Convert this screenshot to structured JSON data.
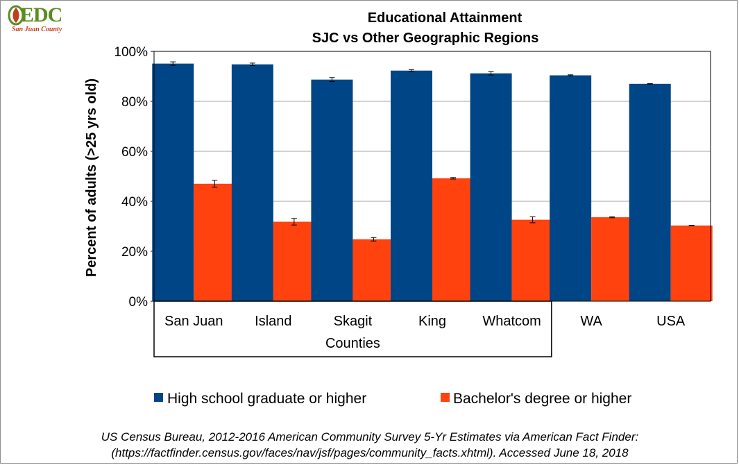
{
  "logo": {
    "text": "EDC",
    "subtext": "San Juan County"
  },
  "chart_data": {
    "type": "bar",
    "title_lines": [
      "Educational Attainment",
      "SJC vs Other Geographic Regions"
    ],
    "ylabel": "Percent of adults (>25 yrs old)",
    "ylim": [
      0,
      100
    ],
    "yticks": [
      "0%",
      "20%",
      "40%",
      "60%",
      "80%",
      "100%"
    ],
    "ytick_values": [
      0,
      20,
      40,
      60,
      80,
      100
    ],
    "grid": true,
    "categories": [
      "San Juan",
      "Island",
      "Skagit",
      "King",
      "Whatcom",
      "WA",
      "USA"
    ],
    "group_label": "Counties",
    "series": [
      {
        "name": "High school graduate or higher",
        "color": "#004586",
        "values": [
          95.1,
          94.8,
          88.7,
          92.3,
          91.2,
          90.4,
          87.0
        ],
        "errors": [
          0.7,
          0.5,
          0.8,
          0.4,
          0.7,
          0.2,
          0.1
        ]
      },
      {
        "name": "Bachelor's degree or higher",
        "color": "#ff420e",
        "values": [
          47.0,
          31.8,
          24.8,
          49.2,
          32.6,
          33.6,
          30.3
        ],
        "errors": [
          1.4,
          1.3,
          0.7,
          0.3,
          1.2,
          0.2,
          0.1
        ]
      }
    ],
    "legend_position": "bottom"
  },
  "source": {
    "line1": "US Census Bureau, 2012-2016 American Community Survey 5-Yr Estimates via American Fact Finder:",
    "line2": "(https://factfinder.census.gov/faces/nav/jsf/pages/community_facts.xhtml). Accessed June 18, 2018"
  }
}
